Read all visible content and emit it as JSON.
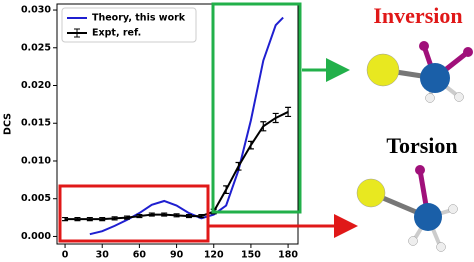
{
  "chart_data": {
    "type": "line",
    "ylabel": "DCS",
    "xlim": [
      -6.5,
      188
    ],
    "ylim": [
      -0.001,
      0.0308
    ],
    "xticks": [
      0,
      30,
      60,
      90,
      120,
      150,
      180
    ],
    "yticks": [
      {
        "value": 0,
        "label": "0.000"
      },
      {
        "value": 0.005,
        "label": "0.005"
      },
      {
        "value": 0.01,
        "label": "0.010"
      },
      {
        "value": 0.015,
        "label": "0.015"
      },
      {
        "value": 0.02,
        "label": "0.020"
      },
      {
        "value": 0.025,
        "label": "0.025"
      },
      {
        "value": 0.03,
        "label": "0.030"
      }
    ],
    "legend": "upper left",
    "series": [
      {
        "name": "Theory, this work",
        "color": "#1f1fd0",
        "x": [
          20,
          30,
          40,
          50,
          60,
          70,
          80,
          90,
          100,
          110,
          120,
          130,
          140,
          150,
          160,
          170,
          176
        ],
        "values": [
          0.0003,
          0.0007,
          0.0014,
          0.0022,
          0.0031,
          0.0042,
          0.0047,
          0.0041,
          0.0031,
          0.0024,
          0.0029,
          0.0041,
          0.0088,
          0.0154,
          0.0233,
          0.028,
          0.029
        ]
      },
      {
        "name": "Expt, ref.",
        "color": "#000000",
        "x": [
          0,
          10,
          20,
          30,
          40,
          50,
          60,
          70,
          80,
          90,
          100,
          110,
          120,
          130,
          140,
          150,
          160,
          170,
          180
        ],
        "values": [
          0.0023,
          0.0023,
          0.0023,
          0.0023,
          0.0024,
          0.0025,
          0.0027,
          0.0029,
          0.0029,
          0.0028,
          0.0027,
          0.0027,
          0.0033,
          0.0062,
          0.0093,
          0.0121,
          0.0146,
          0.0157,
          0.0165
        ],
        "errors": [
          0.0002,
          0.0002,
          0.0002,
          0.0002,
          0.0002,
          0.0002,
          0.0002,
          0.0002,
          0.0002,
          0.0002,
          0.0002,
          0.0002,
          0.0003,
          0.0005,
          0.0005,
          0.0005,
          0.0006,
          0.0006,
          0.0006
        ]
      }
    ],
    "annotations": [
      "Inversion",
      "Torsion"
    ]
  }
}
